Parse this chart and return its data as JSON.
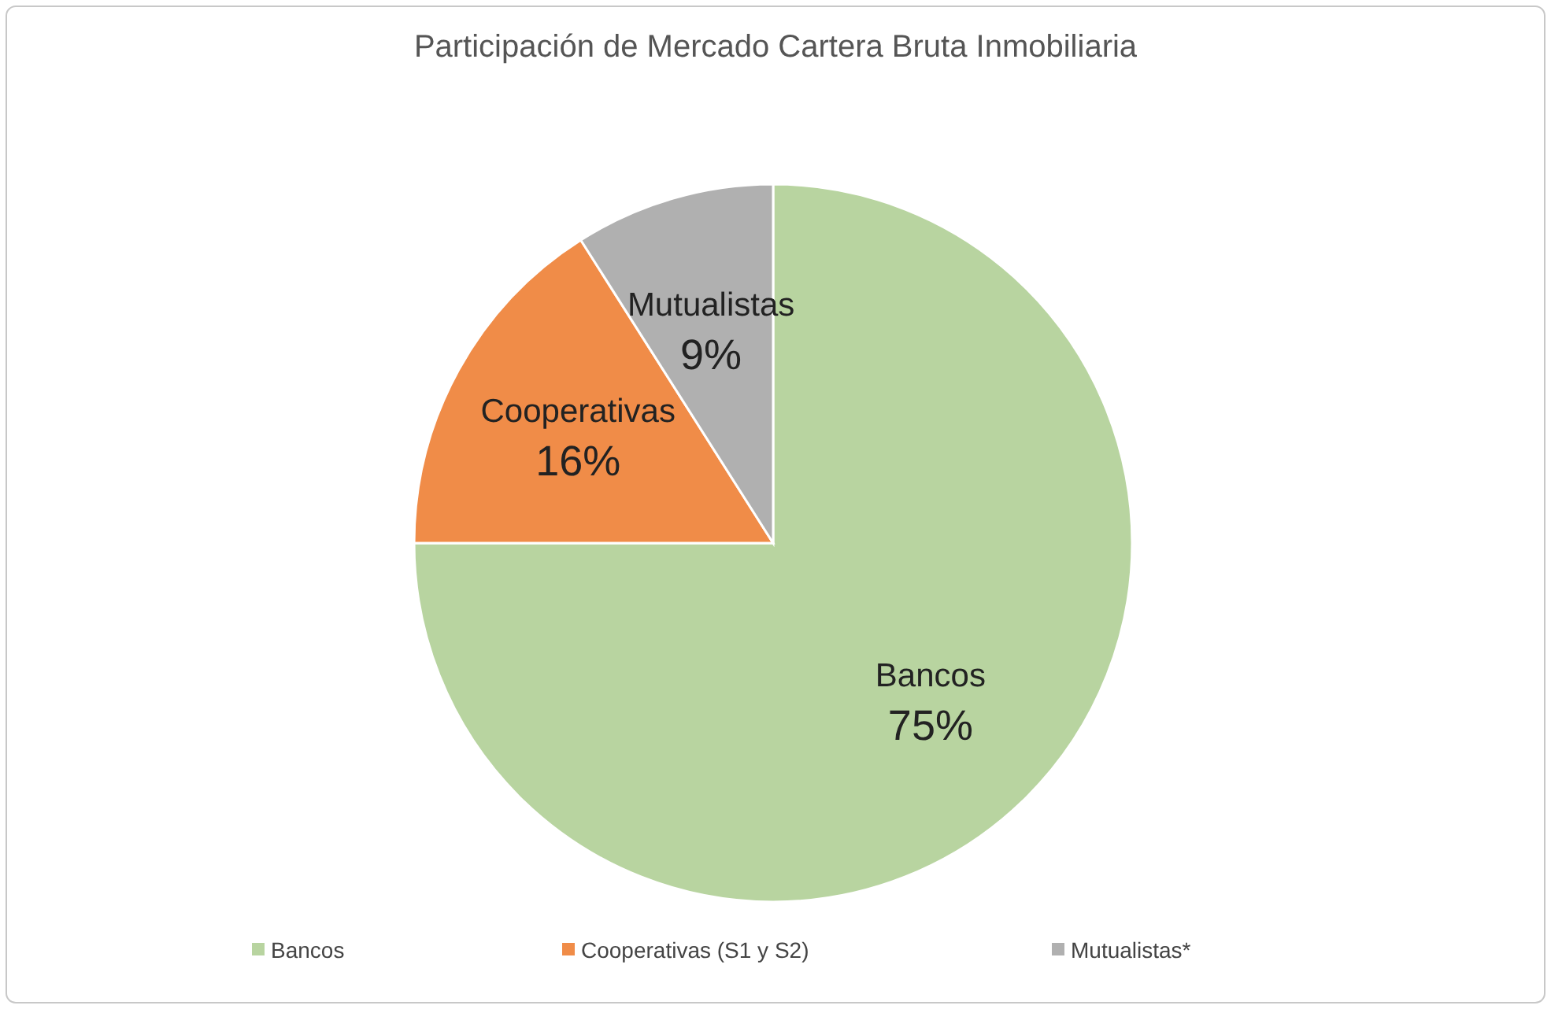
{
  "chart_data": {
    "type": "pie",
    "title": "Participación de Mercado Cartera Bruta Inmobiliaria",
    "categories": [
      "Bancos",
      "Cooperativas (S1 y S2)",
      "Mutualistas*"
    ],
    "values": [
      75,
      16,
      9
    ],
    "colors": [
      "#b8d4a0",
      "#f08c48",
      "#b0b0b0"
    ],
    "value_labels": [
      "75%",
      "16%",
      "9%"
    ],
    "annotations": [
      {
        "text": "Bancos",
        "x": "Bancos"
      },
      {
        "text": "Cooperativas",
        "x": "Cooperativas (S1 y S2)"
      },
      {
        "text": "Mutualistas",
        "x": "Mutualistas*"
      }
    ],
    "legend": "bottom"
  }
}
